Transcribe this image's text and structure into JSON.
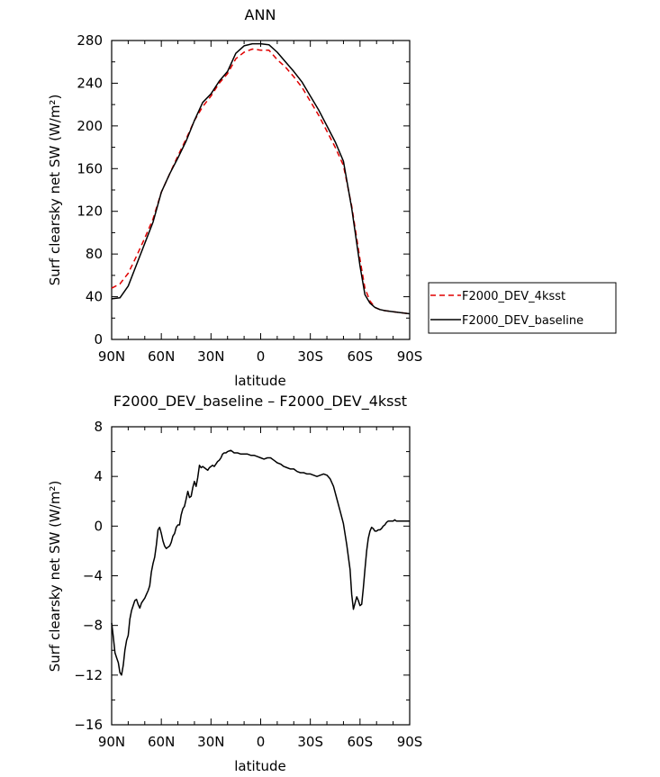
{
  "chart_data": [
    {
      "type": "line",
      "title": "ANN",
      "xlabel": "latitude",
      "ylabel": "Surf clearsky net SW (W/m²)",
      "xlim": [
        90,
        -90
      ],
      "ylim": [
        0,
        280
      ],
      "x_ticks": [
        90,
        60,
        30,
        0,
        -30,
        -60,
        -90
      ],
      "x_tick_labels": [
        "90N",
        "60N",
        "30N",
        "0",
        "30S",
        "60S",
        "90S"
      ],
      "y_ticks": [
        0,
        40,
        80,
        120,
        160,
        200,
        240,
        280
      ],
      "y_tick_labels": [
        "0",
        "40",
        "80",
        "120",
        "160",
        "200",
        "240",
        "280"
      ],
      "legend_position": "right-bottom",
      "series": [
        {
          "name": "F2000_DEV_4ksst",
          "color": "#e00000",
          "dash": "dashed",
          "x": [
            90,
            85,
            80,
            75,
            70,
            65,
            60,
            55,
            50,
            45,
            40,
            35,
            30,
            25,
            20,
            15,
            10,
            5,
            0,
            -5,
            -10,
            -15,
            -20,
            -25,
            -30,
            -35,
            -40,
            -45,
            -50,
            -55,
            -60,
            -63,
            -66,
            -69,
            -72,
            -75,
            -80,
            -85,
            -90
          ],
          "y": [
            48,
            52,
            62,
            78,
            95,
            113,
            138,
            155,
            172,
            188,
            205,
            218,
            228,
            240,
            249,
            263,
            269,
            272,
            271,
            271,
            262,
            255,
            246,
            236,
            223,
            210,
            195,
            180,
            163,
            125,
            75,
            48,
            36,
            30,
            28,
            27,
            26,
            25,
            24
          ]
        },
        {
          "name": "F2000_DEV_baseline",
          "color": "#000000",
          "dash": "solid",
          "x": [
            90,
            85,
            80,
            75,
            70,
            65,
            60,
            55,
            50,
            45,
            40,
            35,
            30,
            25,
            20,
            15,
            10,
            5,
            0,
            -5,
            -10,
            -15,
            -20,
            -25,
            -30,
            -35,
            -40,
            -45,
            -50,
            -55,
            -60,
            -63,
            -66,
            -69,
            -72,
            -75,
            -80,
            -85,
            -90
          ],
          "y": [
            38,
            39,
            50,
            70,
            90,
            110,
            138,
            155,
            170,
            186,
            205,
            222,
            230,
            242,
            251,
            268,
            275,
            277,
            277,
            276,
            269,
            260,
            251,
            241,
            228,
            215,
            200,
            185,
            167,
            123,
            69,
            42,
            34,
            30,
            28,
            27,
            26,
            25,
            24
          ]
        }
      ]
    },
    {
      "type": "line",
      "title": "F2000_DEV_baseline – F2000_DEV_4ksst",
      "xlabel": "latitude",
      "ylabel": "Surf clearsky net SW (W/m²)",
      "xlim": [
        90,
        -90
      ],
      "ylim": [
        -16,
        8
      ],
      "x_ticks": [
        90,
        60,
        30,
        0,
        -30,
        -60,
        -90
      ],
      "x_tick_labels": [
        "90N",
        "60N",
        "30N",
        "0",
        "30S",
        "60S",
        "90S"
      ],
      "y_ticks": [
        -16,
        -12,
        -8,
        -4,
        0,
        4,
        8
      ],
      "y_tick_labels": [
        "−16",
        "−12",
        "−8",
        "−4",
        "0",
        "4",
        "8"
      ],
      "series": [
        {
          "color": "#000000",
          "dash": "solid",
          "x": [
            90,
            89,
            88,
            87,
            86,
            85,
            84,
            83,
            82,
            81,
            80,
            79,
            78,
            77,
            76,
            75,
            74,
            73,
            72,
            71,
            70,
            69,
            68,
            67,
            66,
            65,
            64,
            63,
            62,
            61,
            60,
            59,
            58,
            57,
            56,
            55,
            54,
            53,
            52,
            51,
            50,
            49,
            48,
            47,
            46,
            45,
            44,
            43,
            42,
            41,
            40,
            39,
            38,
            37,
            36,
            35,
            34,
            33,
            32,
            31,
            30,
            29,
            28,
            27,
            26,
            25,
            24,
            23,
            22,
            21,
            20,
            18,
            16,
            14,
            12,
            10,
            8,
            6,
            4,
            2,
            0,
            -2,
            -4,
            -6,
            -8,
            -10,
            -12,
            -14,
            -16,
            -18,
            -20,
            -22,
            -24,
            -26,
            -28,
            -30,
            -32,
            -34,
            -36,
            -38,
            -40,
            -42,
            -44,
            -46,
            -48,
            -50,
            -52,
            -54,
            -55,
            -56,
            -57,
            -58,
            -59,
            -60,
            -61,
            -62,
            -63,
            -64,
            -65,
            -66,
            -67,
            -68,
            -69,
            -70,
            -71,
            -72,
            -73,
            -74,
            -75,
            -76,
            -77,
            -78,
            -79,
            -80,
            -81,
            -82,
            -83,
            -84,
            -85,
            -86,
            -87,
            -88,
            -89,
            -90
          ],
          "y": [
            -7.8,
            -8.9,
            -10.2,
            -10.6,
            -11.0,
            -11.8,
            -12.0,
            -11.2,
            -10.0,
            -9.2,
            -8.8,
            -7.5,
            -6.8,
            -6.4,
            -6.0,
            -5.9,
            -6.3,
            -6.6,
            -6.2,
            -6.0,
            -5.8,
            -5.5,
            -5.2,
            -4.8,
            -3.7,
            -3.0,
            -2.5,
            -1.5,
            -0.3,
            -0.1,
            -0.6,
            -1.2,
            -1.6,
            -1.8,
            -1.7,
            -1.6,
            -1.3,
            -0.8,
            -0.6,
            -0.1,
            0.1,
            0.1,
            0.9,
            1.4,
            1.6,
            2.2,
            2.8,
            2.3,
            2.4,
            3.1,
            3.6,
            3.2,
            3.9,
            4.9,
            4.7,
            4.8,
            4.7,
            4.6,
            4.5,
            4.7,
            4.8,
            4.9,
            4.8,
            5.0,
            5.2,
            5.3,
            5.5,
            5.8,
            5.9,
            5.9,
            6.0,
            6.1,
            5.9,
            5.9,
            5.8,
            5.8,
            5.8,
            5.7,
            5.7,
            5.6,
            5.5,
            5.4,
            5.5,
            5.5,
            5.3,
            5.1,
            5.0,
            4.8,
            4.7,
            4.6,
            4.6,
            4.4,
            4.3,
            4.3,
            4.2,
            4.2,
            4.1,
            4.0,
            4.1,
            4.2,
            4.1,
            3.8,
            3.2,
            2.2,
            1.2,
            0.2,
            -1.5,
            -3.5,
            -5.5,
            -6.7,
            -6.2,
            -5.7,
            -6.0,
            -6.4,
            -6.3,
            -5.0,
            -3.5,
            -2.0,
            -1.0,
            -0.4,
            -0.1,
            -0.2,
            -0.4,
            -0.4,
            -0.3,
            -0.3,
            -0.2,
            0.0,
            0.1,
            0.3,
            0.4,
            0.4,
            0.4,
            0.4,
            0.5,
            0.4,
            0.4,
            0.4,
            0.4,
            0.4,
            0.4,
            0.4,
            0.4,
            0.4
          ]
        }
      ]
    }
  ]
}
